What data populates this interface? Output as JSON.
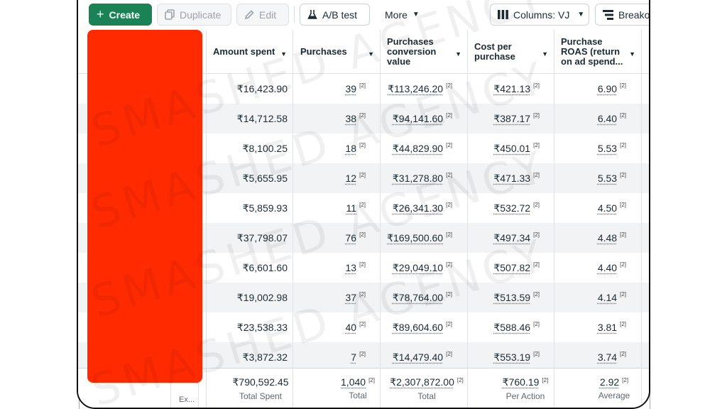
{
  "toolbar": {
    "create": "Create",
    "duplicate": "Duplicate",
    "edit": "Edit",
    "ab_test": "A/B test",
    "more": "More",
    "columns": "Columns: VJ",
    "breakdown": "Breako"
  },
  "icons": {
    "create": "plus-icon",
    "duplicate": "copy-icon",
    "edit": "pencil-icon",
    "ab_test": "flask-icon",
    "more": "caret-down-icon",
    "columns": "columns-icon",
    "breakdown": "breakdown-icon"
  },
  "columns": {
    "amount_spent": "Amount spent",
    "purchases": "Purchases",
    "conversion_value": [
      "Purchases",
      "conversion",
      "value"
    ],
    "cost_per_purchase": [
      "Cost per",
      "purchase"
    ],
    "roas": [
      "Purchase",
      "ROAS (return",
      "on ad spend..."
    ]
  },
  "rows": [
    {
      "spent": "₹16,423.90",
      "purchases": "39",
      "value": "₹113,246.20",
      "cpp": "₹421.13",
      "roas": "6.90"
    },
    {
      "spent": "₹14,712.58",
      "purchases": "38",
      "value": "₹94,141.60",
      "cpp": "₹387.17",
      "roas": "6.40"
    },
    {
      "spent": "₹8,100.25",
      "purchases": "18",
      "value": "₹44,829.90",
      "cpp": "₹450.01",
      "roas": "5.53"
    },
    {
      "spent": "₹5,655.95",
      "purchases": "12",
      "value": "₹31,278.80",
      "cpp": "₹471.33",
      "roas": "5.53"
    },
    {
      "spent": "₹5,859.93",
      "purchases": "11",
      "value": "₹26,341.30",
      "cpp": "₹532.72",
      "roas": "4.50"
    },
    {
      "spent": "₹37,798.07",
      "purchases": "76",
      "value": "₹169,500.60",
      "cpp": "₹497.34",
      "roas": "4.48"
    },
    {
      "spent": "₹6,601.60",
      "purchases": "13",
      "value": "₹29,049.10",
      "cpp": "₹507.82",
      "roas": "4.40"
    },
    {
      "spent": "₹19,002.98",
      "purchases": "37",
      "value": "₹78,764.00",
      "cpp": "₹513.59",
      "roas": "4.14"
    },
    {
      "spent": "₹23,538.33",
      "purchases": "40",
      "value": "₹89,604.60",
      "cpp": "₹588.46",
      "roas": "3.81"
    },
    {
      "spent": "₹3,872.32",
      "purchases": "7",
      "value": "₹14,479.40",
      "cpp": "₹553.19",
      "roas": "3.74"
    }
  ],
  "footnote_marker": "[2]",
  "totals": {
    "spent": "₹790,592.45",
    "spent_label": "Total Spent",
    "purchases": "1,040",
    "purchases_label": "Total",
    "value": "₹2,307,872.00",
    "value_label": "Total",
    "cpp": "₹760.19",
    "cpp_label": "Per Action",
    "roas": "2.92",
    "roas_label": "Average",
    "partial_left": "Ex..."
  },
  "watermark": "SMASHED AGENCY",
  "colors": {
    "create": "#1a8254",
    "redaction": "#ff2a00",
    "stripe": "#f1f3f5"
  }
}
